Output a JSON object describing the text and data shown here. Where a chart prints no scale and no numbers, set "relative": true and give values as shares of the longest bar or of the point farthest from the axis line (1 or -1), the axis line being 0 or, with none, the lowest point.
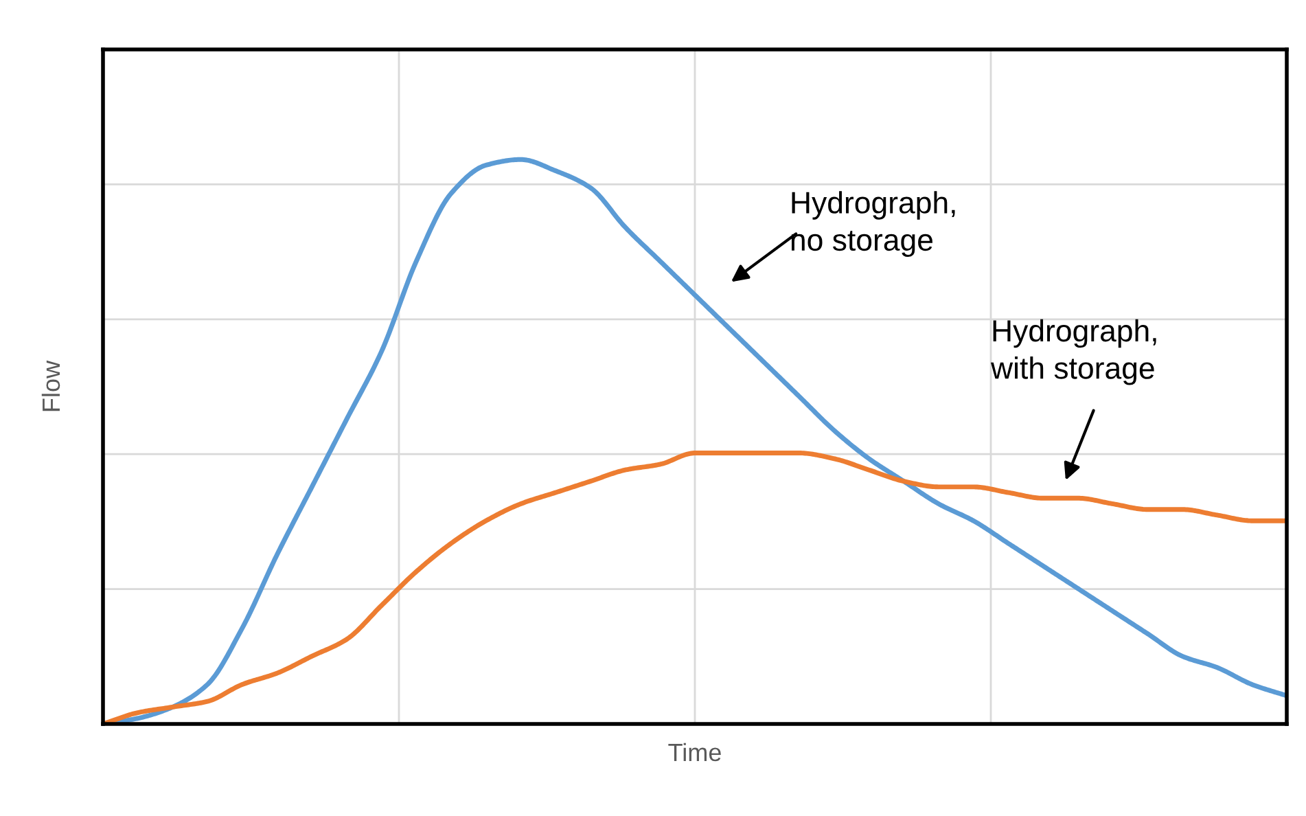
{
  "chart_data": {
    "type": "line",
    "relative": true,
    "xlabel": "Time",
    "ylabel": "Flow",
    "grid": true,
    "legend": false,
    "marker": "none",
    "line_style": "solid",
    "categories": [
      null,
      null,
      null,
      null,
      null,
      null,
      null,
      null,
      null,
      null,
      null,
      null,
      null,
      null,
      null,
      null,
      null,
      null,
      null,
      null,
      null,
      null,
      null,
      null,
      null,
      null,
      null,
      null,
      null,
      null,
      null,
      null,
      null,
      null,
      null
    ],
    "series": [
      {
        "color": "#5b9bd5",
        "values": [
          0,
          0.01,
          0.03,
          0.07,
          0.17,
          0.3,
          0.42,
          0.54,
          0.66,
          0.82,
          0.94,
          0.99,
          1.0,
          0.98,
          0.95,
          0.88,
          0.82,
          0.76,
          0.7,
          0.64,
          0.58,
          0.52,
          0.47,
          0.43,
          0.39,
          0.36,
          0.32,
          0.28,
          0.24,
          0.2,
          0.16,
          0.12,
          0.1,
          0.07,
          0.05
        ]
      },
      {
        "color": "#ed7d31",
        "values": [
          0,
          0.02,
          0.03,
          0.04,
          0.07,
          0.09,
          0.12,
          0.15,
          0.21,
          0.27,
          0.32,
          0.36,
          0.39,
          0.41,
          0.43,
          0.45,
          0.46,
          0.48,
          0.48,
          0.48,
          0.48,
          0.47,
          0.45,
          0.43,
          0.42,
          0.42,
          0.41,
          0.4,
          0.4,
          0.39,
          0.38,
          0.38,
          0.37,
          0.36,
          0.36
        ]
      }
    ],
    "annotations": [
      "Hydrograph,\nno storage",
      "Hydrograph,\nwith storage"
    ]
  }
}
